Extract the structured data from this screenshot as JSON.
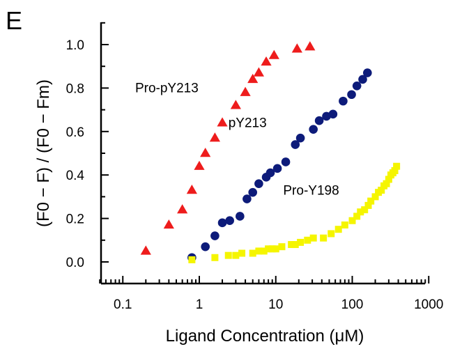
{
  "panel_letter": "E",
  "chart_data": {
    "type": "scatter",
    "title": "",
    "xlabel": "Ligand Concentration (μM)",
    "ylabel": "(F0 − F) / (F0 − Fm)",
    "xscale": "log",
    "xlim": [
      0.05,
      1000
    ],
    "ylim": [
      -0.1,
      1.1
    ],
    "xticks": [
      {
        "value": 0.1,
        "label": "0.1"
      },
      {
        "value": 1,
        "label": "1"
      },
      {
        "value": 10,
        "label": "10"
      },
      {
        "value": 100,
        "label": "100"
      },
      {
        "value": 1000,
        "label": "1000"
      }
    ],
    "yticks": [
      {
        "value": 0.0,
        "label": "0.0"
      },
      {
        "value": 0.2,
        "label": "0.2"
      },
      {
        "value": 0.4,
        "label": "0.4"
      },
      {
        "value": 0.6,
        "label": "0.6"
      },
      {
        "value": 0.8,
        "label": "0.8"
      },
      {
        "value": 1.0,
        "label": "1.0"
      }
    ],
    "series": [
      {
        "name": "Pro-pY213",
        "marker": "triangle",
        "color": "#ee1c1c",
        "x": [
          0.2,
          0.4,
          0.6,
          0.8,
          1.0,
          1.2,
          1.6,
          2.0,
          3.0,
          4.0,
          5.0,
          6.0,
          7.5,
          9.5,
          19,
          28
        ],
        "y": [
          0.05,
          0.17,
          0.24,
          0.33,
          0.44,
          0.5,
          0.57,
          0.64,
          0.72,
          0.78,
          0.84,
          0.87,
          0.92,
          0.95,
          0.98,
          0.99
        ]
      },
      {
        "name": "pY213",
        "marker": "circle",
        "color": "#0d1b7a",
        "x": [
          0.8,
          1.2,
          1.6,
          2.0,
          2.5,
          3.4,
          4.2,
          5.0,
          6.0,
          7.5,
          8.5,
          10.5,
          13.5,
          18,
          21,
          31,
          37,
          46,
          56,
          76,
          98,
          115,
          137,
          158
        ],
        "y": [
          0.02,
          0.07,
          0.12,
          0.18,
          0.19,
          0.21,
          0.29,
          0.32,
          0.36,
          0.39,
          0.41,
          0.43,
          0.46,
          0.54,
          0.57,
          0.61,
          0.65,
          0.67,
          0.68,
          0.74,
          0.77,
          0.81,
          0.84,
          0.87
        ]
      },
      {
        "name": "Pro-Y198",
        "marker": "square",
        "color": "#f5f500",
        "x": [
          0.8,
          1.6,
          2.4,
          3.0,
          3.6,
          5.0,
          6.0,
          7.0,
          8.0,
          9.0,
          10,
          12,
          16,
          18,
          21,
          26,
          31,
          42,
          53,
          66,
          80,
          100,
          115,
          128,
          145,
          162,
          175,
          200,
          220,
          240,
          260,
          280,
          300,
          320,
          340,
          360,
          380
        ],
        "y": [
          0.01,
          0.02,
          0.03,
          0.03,
          0.04,
          0.04,
          0.05,
          0.05,
          0.06,
          0.06,
          0.06,
          0.07,
          0.08,
          0.08,
          0.09,
          0.1,
          0.11,
          0.11,
          0.13,
          0.15,
          0.17,
          0.19,
          0.21,
          0.23,
          0.24,
          0.26,
          0.28,
          0.3,
          0.32,
          0.33,
          0.35,
          0.36,
          0.38,
          0.4,
          0.41,
          0.42,
          0.44
        ]
      }
    ],
    "annotations": [
      {
        "text": "Pro-pY213",
        "series": "Pro-pY213"
      },
      {
        "text": "pY213",
        "series": "pY213"
      },
      {
        "text": "Pro-Y198",
        "series": "Pro-Y198"
      }
    ]
  }
}
